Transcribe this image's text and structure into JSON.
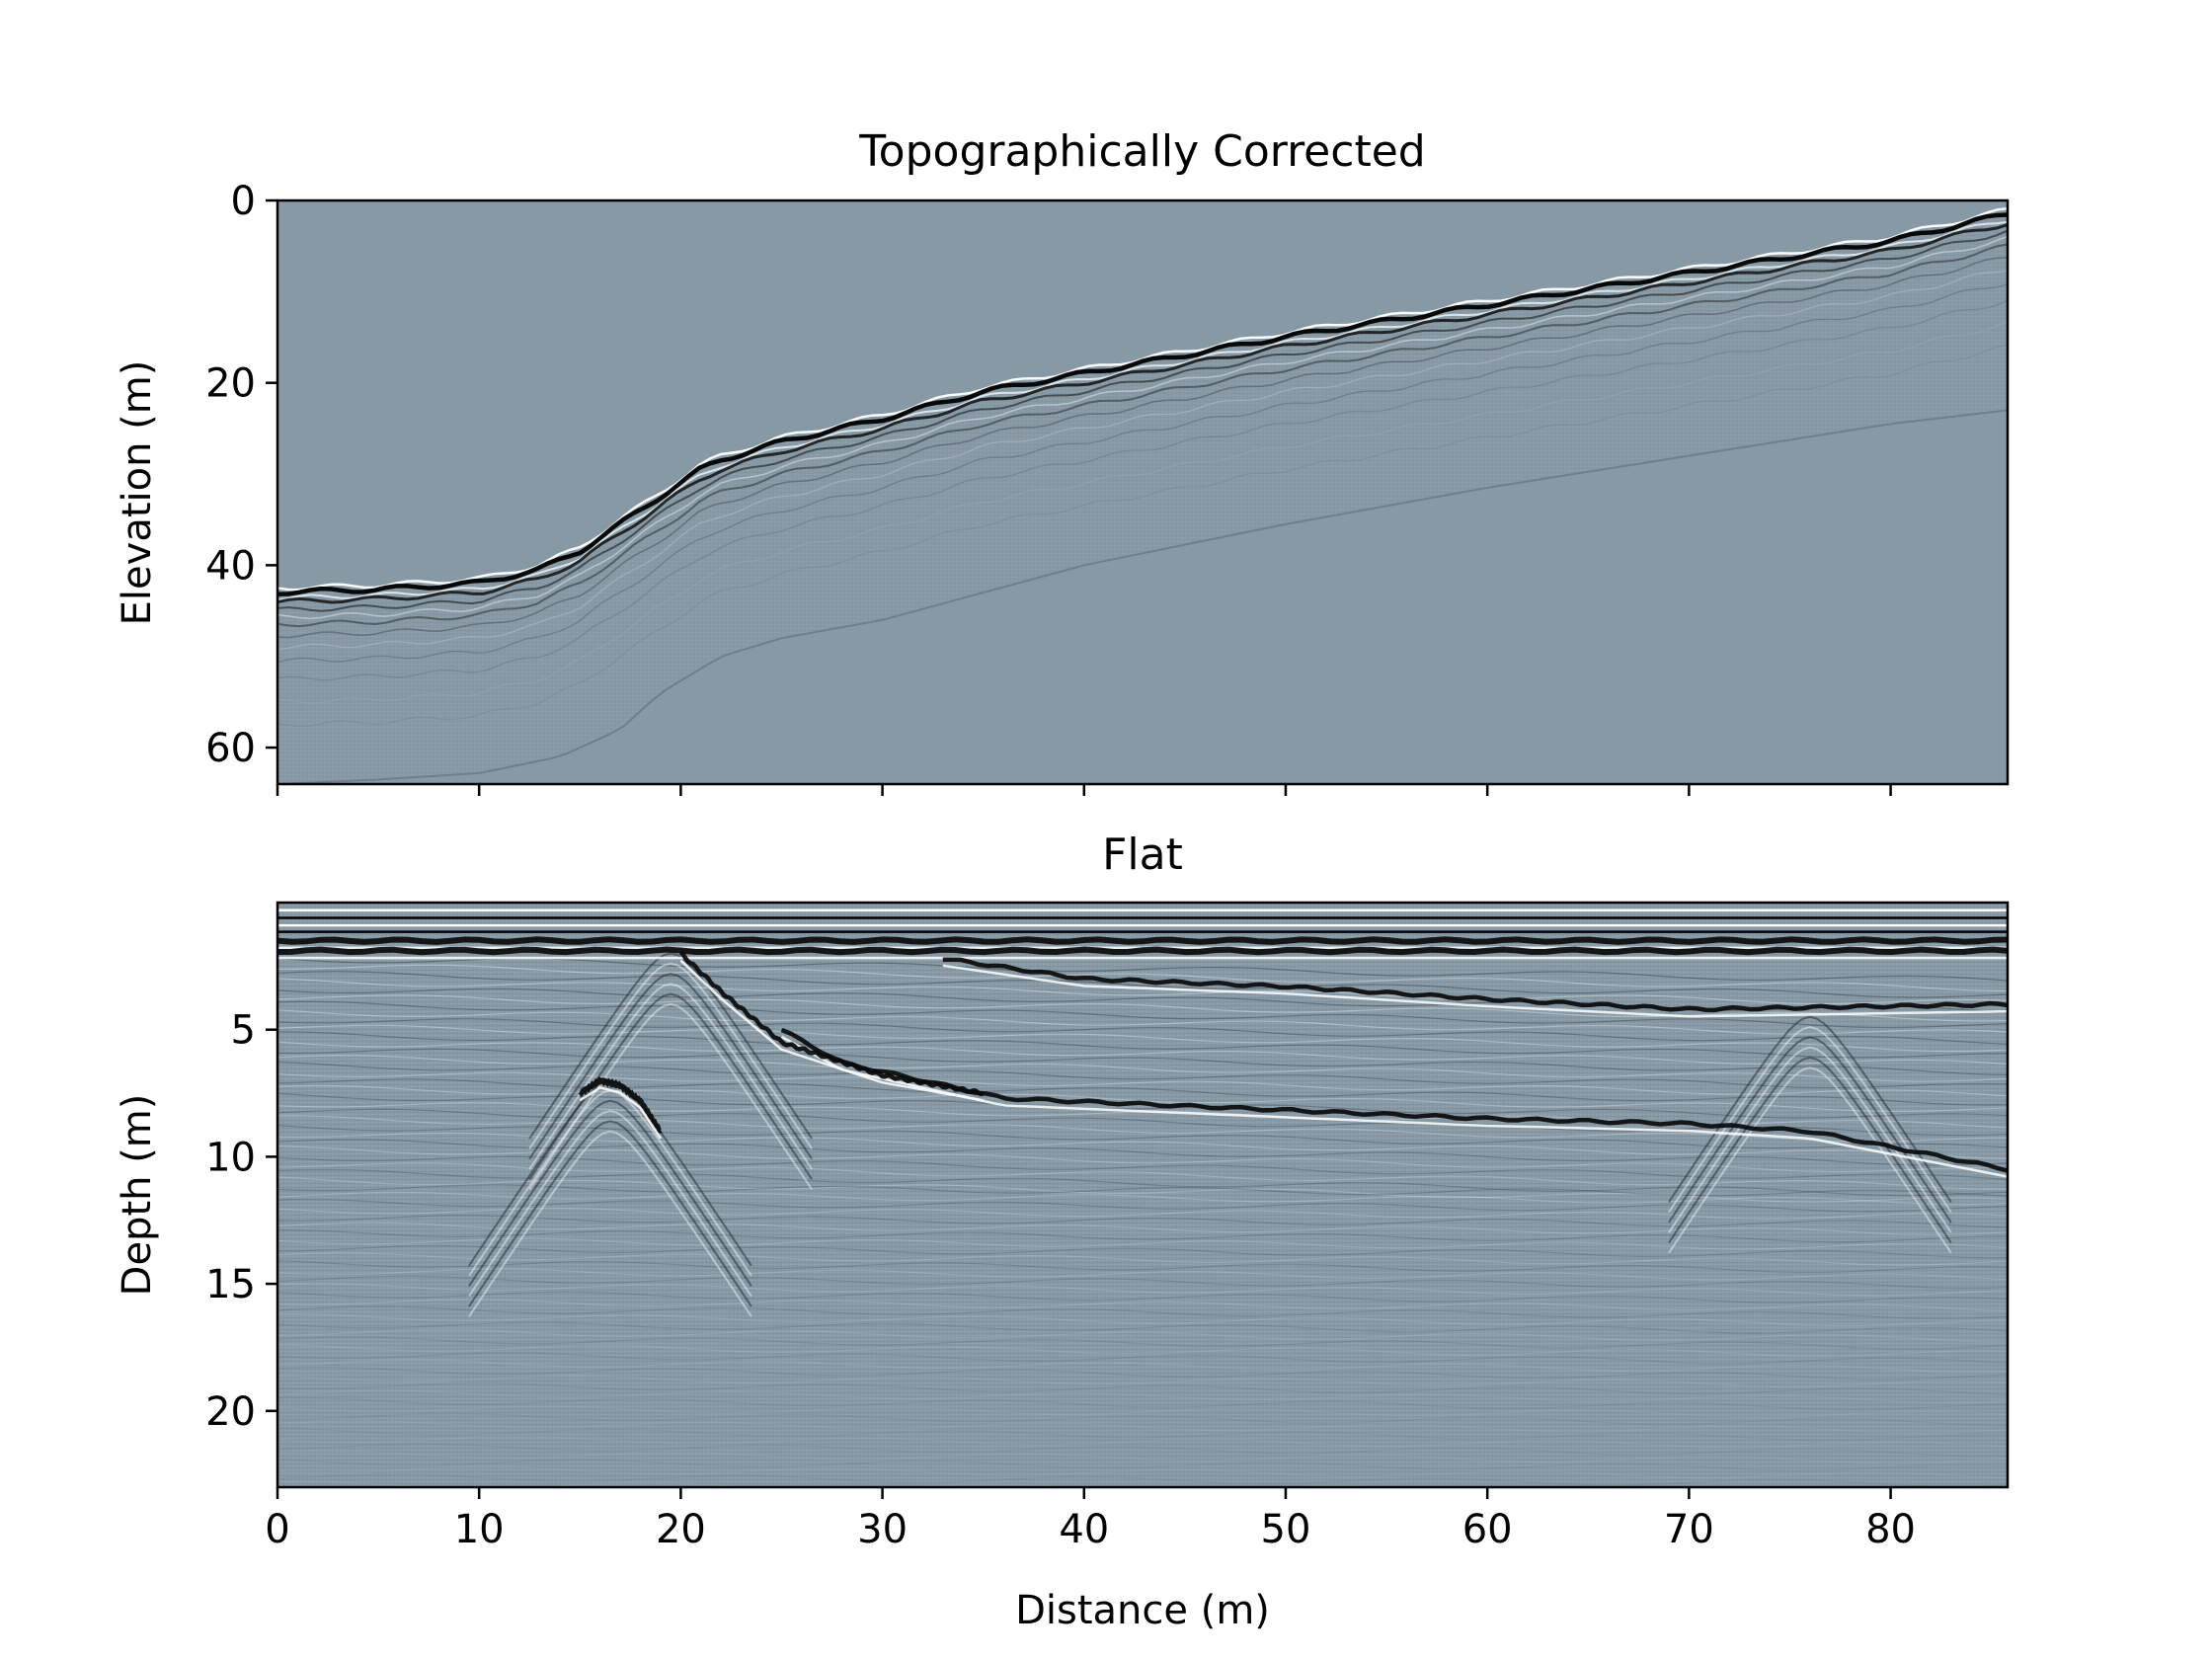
{
  "chart_data": [
    {
      "type": "heatmap",
      "title": "Topographically Corrected",
      "xlabel": "",
      "ylabel": "Elevation (m)",
      "xlim": [
        0,
        85.8
      ],
      "ylim": [
        64,
        0
      ],
      "y_inverted": true,
      "x_ticks": [
        0,
        10,
        20,
        30,
        40,
        50,
        60,
        70,
        80
      ],
      "x_tick_labels_shown": false,
      "y_ticks": [
        0,
        20,
        40,
        60
      ],
      "colormap": "bone",
      "background_color": "#8799a5",
      "surface_profile": {
        "x": [
          0,
          5,
          10,
          13,
          15,
          17,
          19,
          21,
          22,
          25,
          30,
          35,
          40,
          50,
          60,
          70,
          80,
          85.8
        ],
        "y": [
          42.5,
          42.2,
          41.5,
          40.0,
          38.0,
          35.0,
          32.0,
          29.0,
          28.0,
          26.0,
          23.5,
          20.5,
          18.5,
          14.5,
          11.0,
          7.5,
          4.0,
          1.0
        ]
      },
      "bottom_profile": {
        "x": [
          0,
          5,
          10,
          14,
          17,
          19,
          22,
          25,
          30,
          40,
          50,
          60,
          70,
          80,
          85.8
        ],
        "y": [
          64,
          63.5,
          62.8,
          61.0,
          58.0,
          54.0,
          50.0,
          48.0,
          46.0,
          40.0,
          35.5,
          31.5,
          28.0,
          24.5,
          23.0
        ]
      }
    },
    {
      "type": "heatmap",
      "title": "Flat",
      "xlabel": "Distance (m)",
      "ylabel": "Depth (m)",
      "xlim": [
        0,
        85.8
      ],
      "ylim": [
        23,
        0
      ],
      "y_inverted": true,
      "x_ticks": [
        0,
        10,
        20,
        30,
        40,
        50,
        60,
        70,
        80
      ],
      "y_ticks": [
        5,
        10,
        15,
        20
      ],
      "colormap": "bone",
      "background_color": "#8799a5",
      "strong_reflectors": [
        {
          "x": [
            0,
            20,
            40,
            60,
            85.8
          ],
          "y": [
            1.5,
            1.5,
            1.5,
            1.5,
            1.5
          ]
        },
        {
          "x": [
            0,
            20,
            40,
            60,
            85.8
          ],
          "y": [
            1.9,
            1.9,
            1.9,
            1.9,
            1.9
          ]
        },
        {
          "x": [
            33,
            40,
            50,
            60,
            70,
            85.8
          ],
          "y": [
            2.2,
            3.0,
            3.3,
            3.8,
            4.2,
            4.0
          ]
        },
        {
          "x": [
            25,
            28,
            32,
            36,
            45,
            60,
            70,
            76,
            85.8
          ],
          "y": [
            5.0,
            6.3,
            7.0,
            7.7,
            8.0,
            8.5,
            8.7,
            9.0,
            10.5
          ]
        },
        {
          "x": [
            20,
            22,
            25,
            30,
            35
          ],
          "y": [
            2.0,
            3.5,
            5.5,
            6.8,
            7.5
          ]
        },
        {
          "x": [
            15,
            16,
            17,
            18,
            19
          ],
          "y": [
            7.5,
            7.0,
            7.2,
            7.8,
            9.0
          ]
        }
      ]
    }
  ]
}
